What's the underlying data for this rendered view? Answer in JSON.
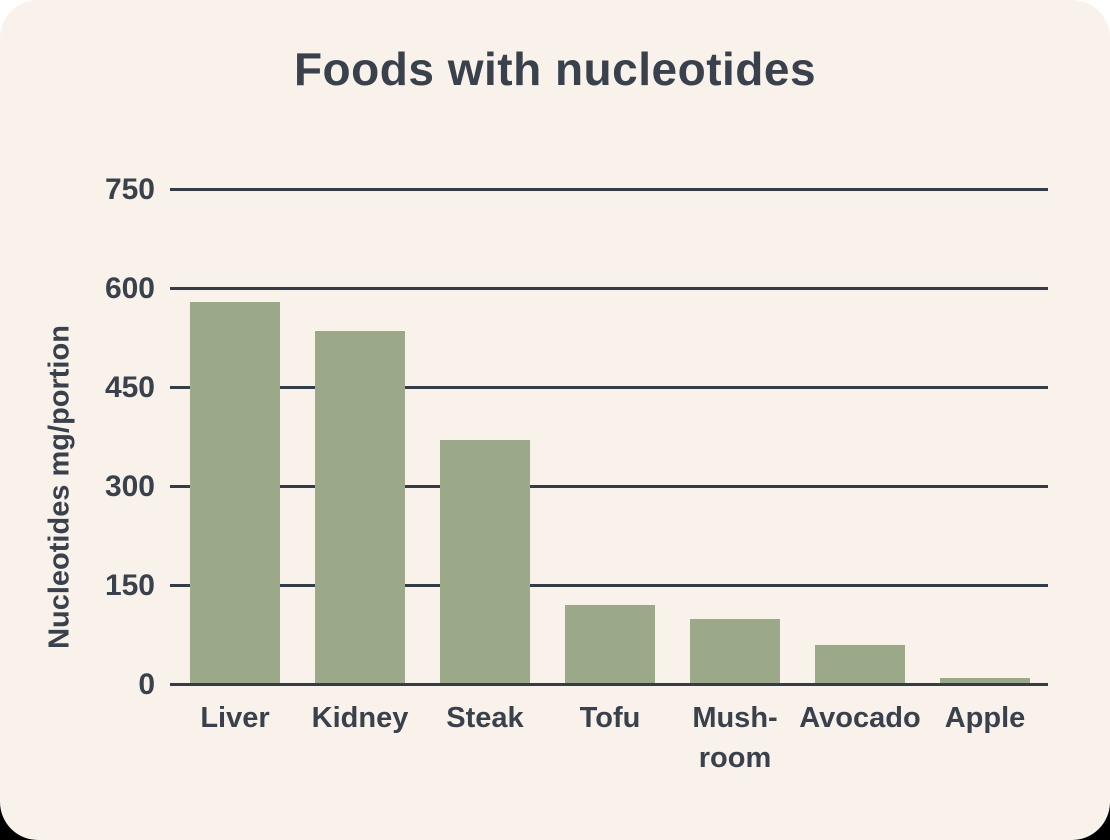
{
  "title": "Foods with nucleotides",
  "colors": {
    "card_background": "#F9F2EB",
    "outside_top": "#FFFFFF",
    "outside_bottom": "#000000",
    "bar": "#9CA989",
    "text": "#39424C",
    "grid": "#333D47"
  },
  "chart_data": {
    "type": "bar",
    "title": "Foods with nucleotides",
    "xlabel": "",
    "ylabel": "Nucleotides mg/portion",
    "categories": [
      "Liver",
      "Kidney",
      "Steak",
      "Tofu",
      "Mush-room",
      "Avocado",
      "Apple"
    ],
    "category_lines": [
      [
        "Liver"
      ],
      [
        "Kidney"
      ],
      [
        "Steak"
      ],
      [
        "Tofu"
      ],
      [
        "Mush-",
        "room"
      ],
      [
        "Avocado"
      ],
      [
        "Apple"
      ]
    ],
    "values": [
      580,
      535,
      370,
      120,
      100,
      60,
      10
    ],
    "unit": "mg/portion",
    "ylim": [
      0,
      750
    ],
    "yticks": [
      0,
      150,
      300,
      450,
      600,
      750
    ],
    "grid": true,
    "legend": false
  }
}
